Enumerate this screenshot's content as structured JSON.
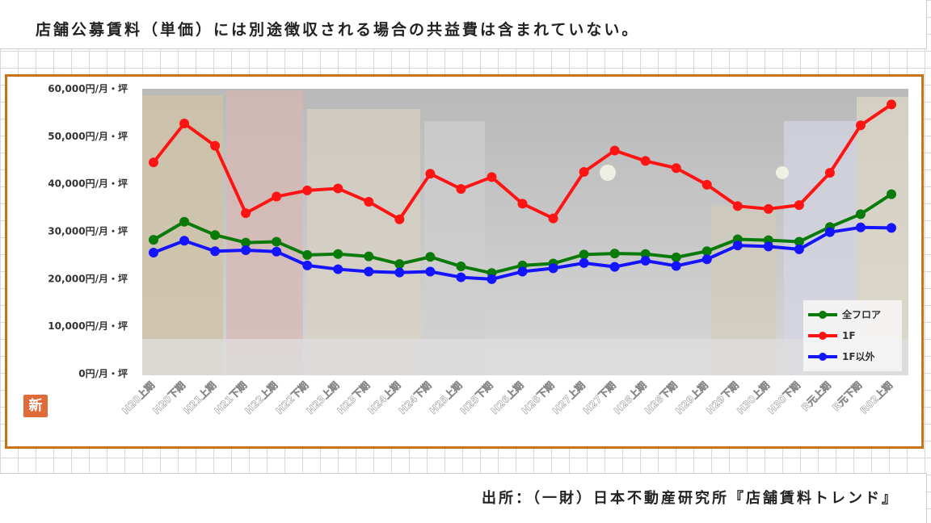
{
  "header_note": "店舗公募賃料（単価）には別途徴収される場合の共益費は含まれていない。",
  "source_note": "出所：（一財）日本不動産研究所『店舗賃料トレンド』",
  "badge": "新",
  "colors": {
    "all_floors": "#0a7a0a",
    "first_floor": "#ff1414",
    "other_floors": "#1414ff",
    "frame": "#c8721a"
  },
  "chart_data": {
    "type": "line",
    "title": "",
    "xlabel": "",
    "ylabel": "",
    "ylim": [
      0,
      60000
    ],
    "y_ticks": [
      0,
      10000,
      20000,
      30000,
      40000,
      50000,
      60000
    ],
    "y_tick_labels": [
      "0円/月・坪",
      "10,000円/月・坪",
      "20,000円/月・坪",
      "30,000円/月・坪",
      "40,000円/月・坪",
      "50,000円/月・坪",
      "60,000円/月・坪"
    ],
    "categories": [
      "H20上期",
      "H20下期",
      "H21上期",
      "H21下期",
      "H22上期",
      "H22下期",
      "H23上期",
      "H23下期",
      "H24上期",
      "H24下期",
      "H25上期",
      "H25下期",
      "H26上期",
      "H26下期",
      "H27上期",
      "H27下期",
      "H28上期",
      "H28下期",
      "H29上期",
      "H29下期",
      "H30上期",
      "H30下期",
      "R元上期",
      "R元下期",
      "R02上期"
    ],
    "legend_position": "bottom-right",
    "grid": false,
    "series": [
      {
        "name": "全フロア",
        "color": "#0a7a0a",
        "values": [
          28200,
          32000,
          29200,
          27600,
          27800,
          25000,
          25200,
          24700,
          23100,
          24600,
          22600,
          21200,
          22800,
          23200,
          25100,
          25300,
          25200,
          24500,
          25800,
          28300,
          28100,
          27800,
          30900,
          33600,
          37800
        ]
      },
      {
        "name": "1F",
        "color": "#ff1414",
        "values": [
          44500,
          52700,
          48000,
          33800,
          37300,
          38600,
          39000,
          36200,
          32500,
          42100,
          38900,
          41400,
          35800,
          32700,
          42500,
          47000,
          44800,
          43300,
          39800,
          35300,
          34700,
          35500,
          42300,
          52300,
          56700
        ]
      },
      {
        "name": "1F以外",
        "color": "#1414ff",
        "values": [
          25500,
          28000,
          25800,
          26000,
          25700,
          22800,
          22000,
          21500,
          21300,
          21500,
          20300,
          19900,
          21500,
          22200,
          23300,
          22500,
          23800,
          22700,
          24100,
          27000,
          26800,
          26200,
          29800,
          30800,
          30700
        ]
      }
    ]
  }
}
